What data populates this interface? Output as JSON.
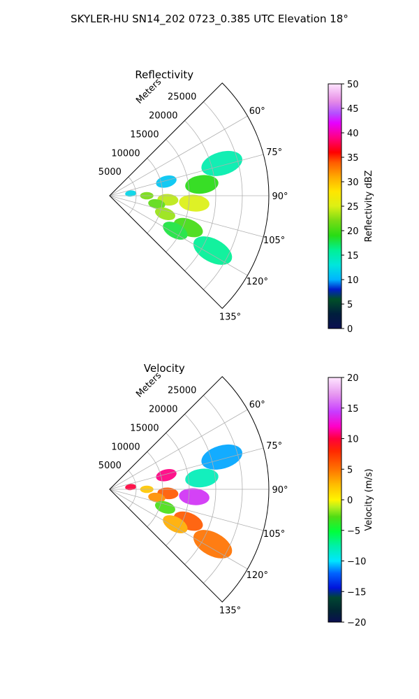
{
  "suptitle": "SKYLER-HU  SN14_202  0723_0.385 UTC Elevation 18°",
  "chart_data": [
    {
      "type": "heatmap",
      "projection": "polar sector",
      "title": "Reflectivity",
      "radial_axis_label": "Meters",
      "radial_ticks": [
        5000,
        10000,
        15000,
        20000,
        25000
      ],
      "radial_tick_labels": [
        "5000",
        "10000",
        "15000",
        "20000",
        "25000"
      ],
      "rmax": 30000,
      "angle_range_deg": [
        45,
        135
      ],
      "angle_ticks": [
        60,
        75,
        90,
        105,
        120,
        135
      ],
      "angle_tick_labels": [
        "60°",
        "75°",
        "90°",
        "105°",
        "120°",
        "135°"
      ],
      "grid": true,
      "colorbar": {
        "label": "Reflectivity dBZ",
        "range": [
          0,
          50
        ],
        "ticks": [
          0,
          5,
          10,
          15,
          20,
          25,
          30,
          35,
          40,
          45,
          50
        ],
        "tick_labels": [
          "0",
          "5",
          "10",
          "15",
          "20",
          "25",
          "30",
          "35",
          "40",
          "45",
          "50"
        ],
        "colormap": "NWS reflectivity (HomeyerRainbow-like)"
      },
      "features": [
        {
          "az": 84,
          "r": 4000,
          "value": 12
        },
        {
          "az": 90,
          "r": 7000,
          "value": 22
        },
        {
          "az": 94,
          "r": 11000,
          "value": 24
        },
        {
          "az": 95,
          "r": 16000,
          "value": 25
        },
        {
          "az": 100,
          "r": 9000,
          "value": 21
        },
        {
          "az": 108,
          "r": 11000,
          "value": 23
        },
        {
          "az": 112,
          "r": 16000,
          "value": 20
        },
        {
          "az": 118,
          "r": 14000,
          "value": 18
        },
        {
          "az": 76,
          "r": 11000,
          "value": 11
        },
        {
          "az": 83,
          "r": 17500,
          "value": 19
        },
        {
          "az": 74,
          "r": 22000,
          "value": 15
        },
        {
          "az": 118,
          "r": 22000,
          "value": 16
        }
      ]
    },
    {
      "type": "heatmap",
      "projection": "polar sector",
      "title": "Velocity",
      "radial_axis_label": "Meters",
      "radial_ticks": [
        5000,
        10000,
        15000,
        20000,
        25000
      ],
      "radial_tick_labels": [
        "5000",
        "10000",
        "15000",
        "20000",
        "25000"
      ],
      "rmax": 30000,
      "angle_range_deg": [
        45,
        135
      ],
      "angle_ticks": [
        60,
        75,
        90,
        105,
        120,
        135
      ],
      "angle_tick_labels": [
        "60°",
        "75°",
        "90°",
        "105°",
        "120°",
        "135°"
      ],
      "grid": true,
      "colorbar": {
        "label": "Velocity (m/s)",
        "range": [
          -20,
          20
        ],
        "ticks": [
          -20,
          -15,
          -10,
          -5,
          0,
          5,
          10,
          15,
          20
        ],
        "tick_labels": [
          "−20",
          "−15",
          "−10",
          "−5",
          "0",
          "5",
          "10",
          "15",
          "20"
        ],
        "colormap": "diverging velocity (blue-green to red-magenta)"
      },
      "features": [
        {
          "az": 84,
          "r": 4000,
          "value": 10
        },
        {
          "az": 90,
          "r": 7000,
          "value": 2
        },
        {
          "az": 94,
          "r": 11000,
          "value": 6
        },
        {
          "az": 95,
          "r": 16000,
          "value": 14
        },
        {
          "az": 100,
          "r": 9000,
          "value": 4
        },
        {
          "az": 108,
          "r": 11000,
          "value": -3
        },
        {
          "az": 112,
          "r": 16000,
          "value": 6
        },
        {
          "az": 118,
          "r": 14000,
          "value": 3
        },
        {
          "az": 76,
          "r": 11000,
          "value": 11
        },
        {
          "az": 83,
          "r": 17500,
          "value": -8
        },
        {
          "az": 74,
          "r": 22000,
          "value": -11
        },
        {
          "az": 118,
          "r": 22000,
          "value": 5
        }
      ]
    }
  ]
}
